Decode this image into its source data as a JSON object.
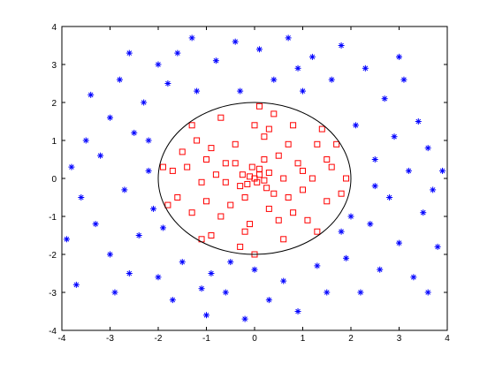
{
  "chart_data": {
    "type": "scatter",
    "xlim": [
      -4,
      4
    ],
    "ylim": [
      -4,
      4
    ],
    "xticks": [
      -4,
      -3,
      -2,
      -1,
      0,
      1,
      2,
      3,
      4
    ],
    "yticks": [
      -4,
      -3,
      -2,
      -1,
      0,
      1,
      2,
      3,
      4
    ],
    "boundary": {
      "radius": 2,
      "color": "#000000"
    },
    "series": [
      {
        "color": "#0000ff",
        "marker": "asterisk",
        "x": [
          -3.8,
          -3.6,
          -3.5,
          -3.3,
          -3.2,
          -3.0,
          -3.0,
          -2.8,
          -2.7,
          -2.6,
          -2.5,
          -2.4,
          -2.3,
          -2.2,
          -2.1,
          -2.0,
          -2.0,
          -1.8,
          -1.7,
          -1.6,
          -1.5,
          -1.3,
          -1.2,
          -1.0,
          -0.9,
          -0.8,
          -0.6,
          -0.4,
          -0.3,
          -0.2,
          0.0,
          0.1,
          0.3,
          0.4,
          0.6,
          0.7,
          0.9,
          1.0,
          1.2,
          1.3,
          1.5,
          1.6,
          1.8,
          1.9,
          2.1,
          2.2,
          2.3,
          2.4,
          2.5,
          2.6,
          2.7,
          2.8,
          2.9,
          3.0,
          3.1,
          3.2,
          3.3,
          3.4,
          3.5,
          3.6,
          3.7,
          3.8,
          3.9,
          -3.9,
          -3.4,
          -2.9,
          2.0,
          -2.2,
          2.5,
          -1.1,
          0.9,
          -0.5,
          1.8,
          -1.9,
          3.6,
          -3.7,
          3.0,
          -2.6
        ],
        "values": [
          0.3,
          -0.5,
          1.0,
          -1.2,
          0.6,
          1.6,
          -2.0,
          2.6,
          -0.3,
          -2.5,
          1.2,
          -1.5,
          2.0,
          0.2,
          -0.8,
          3.0,
          -2.6,
          2.5,
          -3.2,
          3.3,
          -2.2,
          3.7,
          2.3,
          -3.6,
          -2.5,
          3.1,
          -3.0,
          3.6,
          2.3,
          -3.7,
          -2.4,
          3.4,
          -3.2,
          2.6,
          -2.7,
          3.7,
          -3.5,
          2.3,
          3.2,
          -2.3,
          -3.0,
          2.6,
          3.5,
          -2.1,
          1.4,
          -3.0,
          2.9,
          -1.2,
          0.5,
          -2.4,
          2.1,
          -0.5,
          1.1,
          -1.7,
          2.6,
          0.2,
          -2.6,
          1.5,
          -0.9,
          0.8,
          -0.3,
          -1.8,
          0.2,
          -1.6,
          2.2,
          -3.0,
          -1.0,
          1.0,
          -0.2,
          -2.9,
          2.9,
          -2.2,
          -1.4,
          -1.3,
          -3.0,
          -2.8,
          3.2,
          3.3
        ]
      },
      {
        "color": "#ff0000",
        "marker": "square",
        "x": [
          0,
          0.1,
          -0.1,
          0.05,
          0.2,
          -0.15,
          0.1,
          -0.25,
          0.3,
          -0.05,
          0.25,
          -0.3,
          0.5,
          -0.6,
          0.7,
          -0.5,
          1.0,
          -1.1,
          0.2,
          -0.1,
          1.3,
          -1.2,
          1.1,
          -1.3,
          1.6,
          -1.7,
          0.4,
          -0.3,
          1.5,
          -1.5,
          0.8,
          -0.9,
          1.8,
          -1.6,
          0.6,
          -0.7,
          0.9,
          -0.8,
          0.3,
          -0.4,
          1.2,
          0.0,
          -1.0,
          0.5,
          1.7,
          -1.8,
          1.4,
          -1.3,
          1.3,
          -1.1,
          0.2,
          -0.2,
          0.6,
          -0.6,
          0.4,
          -0.4,
          1.9,
          -1.9,
          0.1,
          0.0,
          0.7,
          -0.9,
          0.8,
          -0.7,
          1.5,
          -1.4,
          0.3,
          -0.2,
          1.0,
          -1.0
        ],
        "values": [
          0,
          0.1,
          0.05,
          -0.1,
          -0.05,
          -0.15,
          0.25,
          0.1,
          0.15,
          0.3,
          -0.25,
          -0.2,
          0.6,
          0.4,
          -0.5,
          -0.7,
          0.2,
          -0.1,
          1.1,
          -1.2,
          0.9,
          1.0,
          -1.1,
          -0.9,
          0.3,
          0.2,
          1.7,
          -1.8,
          -0.6,
          0.7,
          1.4,
          -1.5,
          -0.4,
          -0.5,
          -1.6,
          1.6,
          0.4,
          0.1,
          -0.8,
          0.9,
          0.0,
          1.4,
          -0.6,
          -1.1,
          0.9,
          -0.7,
          1.3,
          1.4,
          -1.4,
          -1.6,
          0.5,
          -0.5,
          0.0,
          -0.1,
          -0.4,
          0.4,
          0.0,
          0.3,
          1.9,
          -2.0,
          0.9,
          0.8,
          -0.9,
          -1.0,
          0.5,
          0.3,
          1.3,
          -1.4,
          -0.3,
          0.5
        ]
      }
    ]
  }
}
